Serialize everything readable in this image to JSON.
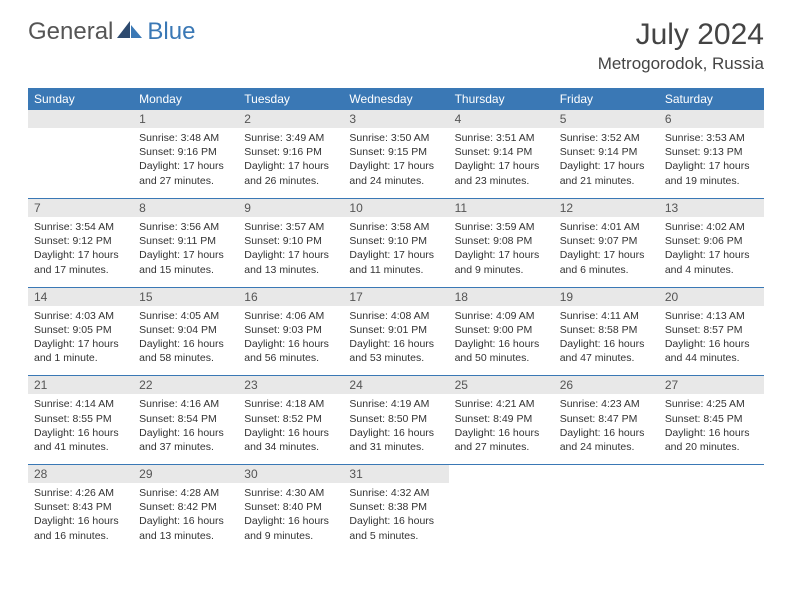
{
  "brand": {
    "part1": "General",
    "part2": "Blue"
  },
  "title": "July 2024",
  "location": "Metrogorodok, Russia",
  "colors": {
    "header_bg": "#3a78b5",
    "header_text": "#ffffff",
    "daynum_bg": "#e8e8e8",
    "border": "#3a78b5",
    "text": "#333333",
    "title_text": "#444444"
  },
  "typography": {
    "title_fontsize": 30,
    "location_fontsize": 17,
    "header_fontsize": 12,
    "body_fontsize": 10.5
  },
  "day_headers": [
    "Sunday",
    "Monday",
    "Tuesday",
    "Wednesday",
    "Thursday",
    "Friday",
    "Saturday"
  ],
  "weeks": [
    [
      {
        "num": "",
        "lines": []
      },
      {
        "num": "1",
        "lines": [
          "Sunrise: 3:48 AM",
          "Sunset: 9:16 PM",
          "Daylight: 17 hours and 27 minutes."
        ]
      },
      {
        "num": "2",
        "lines": [
          "Sunrise: 3:49 AM",
          "Sunset: 9:16 PM",
          "Daylight: 17 hours and 26 minutes."
        ]
      },
      {
        "num": "3",
        "lines": [
          "Sunrise: 3:50 AM",
          "Sunset: 9:15 PM",
          "Daylight: 17 hours and 24 minutes."
        ]
      },
      {
        "num": "4",
        "lines": [
          "Sunrise: 3:51 AM",
          "Sunset: 9:14 PM",
          "Daylight: 17 hours and 23 minutes."
        ]
      },
      {
        "num": "5",
        "lines": [
          "Sunrise: 3:52 AM",
          "Sunset: 9:14 PM",
          "Daylight: 17 hours and 21 minutes."
        ]
      },
      {
        "num": "6",
        "lines": [
          "Sunrise: 3:53 AM",
          "Sunset: 9:13 PM",
          "Daylight: 17 hours and 19 minutes."
        ]
      }
    ],
    [
      {
        "num": "7",
        "lines": [
          "Sunrise: 3:54 AM",
          "Sunset: 9:12 PM",
          "Daylight: 17 hours and 17 minutes."
        ]
      },
      {
        "num": "8",
        "lines": [
          "Sunrise: 3:56 AM",
          "Sunset: 9:11 PM",
          "Daylight: 17 hours and 15 minutes."
        ]
      },
      {
        "num": "9",
        "lines": [
          "Sunrise: 3:57 AM",
          "Sunset: 9:10 PM",
          "Daylight: 17 hours and 13 minutes."
        ]
      },
      {
        "num": "10",
        "lines": [
          "Sunrise: 3:58 AM",
          "Sunset: 9:10 PM",
          "Daylight: 17 hours and 11 minutes."
        ]
      },
      {
        "num": "11",
        "lines": [
          "Sunrise: 3:59 AM",
          "Sunset: 9:08 PM",
          "Daylight: 17 hours and 9 minutes."
        ]
      },
      {
        "num": "12",
        "lines": [
          "Sunrise: 4:01 AM",
          "Sunset: 9:07 PM",
          "Daylight: 17 hours and 6 minutes."
        ]
      },
      {
        "num": "13",
        "lines": [
          "Sunrise: 4:02 AM",
          "Sunset: 9:06 PM",
          "Daylight: 17 hours and 4 minutes."
        ]
      }
    ],
    [
      {
        "num": "14",
        "lines": [
          "Sunrise: 4:03 AM",
          "Sunset: 9:05 PM",
          "Daylight: 17 hours and 1 minute."
        ]
      },
      {
        "num": "15",
        "lines": [
          "Sunrise: 4:05 AM",
          "Sunset: 9:04 PM",
          "Daylight: 16 hours and 58 minutes."
        ]
      },
      {
        "num": "16",
        "lines": [
          "Sunrise: 4:06 AM",
          "Sunset: 9:03 PM",
          "Daylight: 16 hours and 56 minutes."
        ]
      },
      {
        "num": "17",
        "lines": [
          "Sunrise: 4:08 AM",
          "Sunset: 9:01 PM",
          "Daylight: 16 hours and 53 minutes."
        ]
      },
      {
        "num": "18",
        "lines": [
          "Sunrise: 4:09 AM",
          "Sunset: 9:00 PM",
          "Daylight: 16 hours and 50 minutes."
        ]
      },
      {
        "num": "19",
        "lines": [
          "Sunrise: 4:11 AM",
          "Sunset: 8:58 PM",
          "Daylight: 16 hours and 47 minutes."
        ]
      },
      {
        "num": "20",
        "lines": [
          "Sunrise: 4:13 AM",
          "Sunset: 8:57 PM",
          "Daylight: 16 hours and 44 minutes."
        ]
      }
    ],
    [
      {
        "num": "21",
        "lines": [
          "Sunrise: 4:14 AM",
          "Sunset: 8:55 PM",
          "Daylight: 16 hours and 41 minutes."
        ]
      },
      {
        "num": "22",
        "lines": [
          "Sunrise: 4:16 AM",
          "Sunset: 8:54 PM",
          "Daylight: 16 hours and 37 minutes."
        ]
      },
      {
        "num": "23",
        "lines": [
          "Sunrise: 4:18 AM",
          "Sunset: 8:52 PM",
          "Daylight: 16 hours and 34 minutes."
        ]
      },
      {
        "num": "24",
        "lines": [
          "Sunrise: 4:19 AM",
          "Sunset: 8:50 PM",
          "Daylight: 16 hours and 31 minutes."
        ]
      },
      {
        "num": "25",
        "lines": [
          "Sunrise: 4:21 AM",
          "Sunset: 8:49 PM",
          "Daylight: 16 hours and 27 minutes."
        ]
      },
      {
        "num": "26",
        "lines": [
          "Sunrise: 4:23 AM",
          "Sunset: 8:47 PM",
          "Daylight: 16 hours and 24 minutes."
        ]
      },
      {
        "num": "27",
        "lines": [
          "Sunrise: 4:25 AM",
          "Sunset: 8:45 PM",
          "Daylight: 16 hours and 20 minutes."
        ]
      }
    ],
    [
      {
        "num": "28",
        "lines": [
          "Sunrise: 4:26 AM",
          "Sunset: 8:43 PM",
          "Daylight: 16 hours and 16 minutes."
        ]
      },
      {
        "num": "29",
        "lines": [
          "Sunrise: 4:28 AM",
          "Sunset: 8:42 PM",
          "Daylight: 16 hours and 13 minutes."
        ]
      },
      {
        "num": "30",
        "lines": [
          "Sunrise: 4:30 AM",
          "Sunset: 8:40 PM",
          "Daylight: 16 hours and 9 minutes."
        ]
      },
      {
        "num": "31",
        "lines": [
          "Sunrise: 4:32 AM",
          "Sunset: 8:38 PM",
          "Daylight: 16 hours and 5 minutes."
        ]
      },
      {
        "num": "",
        "lines": []
      },
      {
        "num": "",
        "lines": []
      },
      {
        "num": "",
        "lines": []
      }
    ]
  ]
}
